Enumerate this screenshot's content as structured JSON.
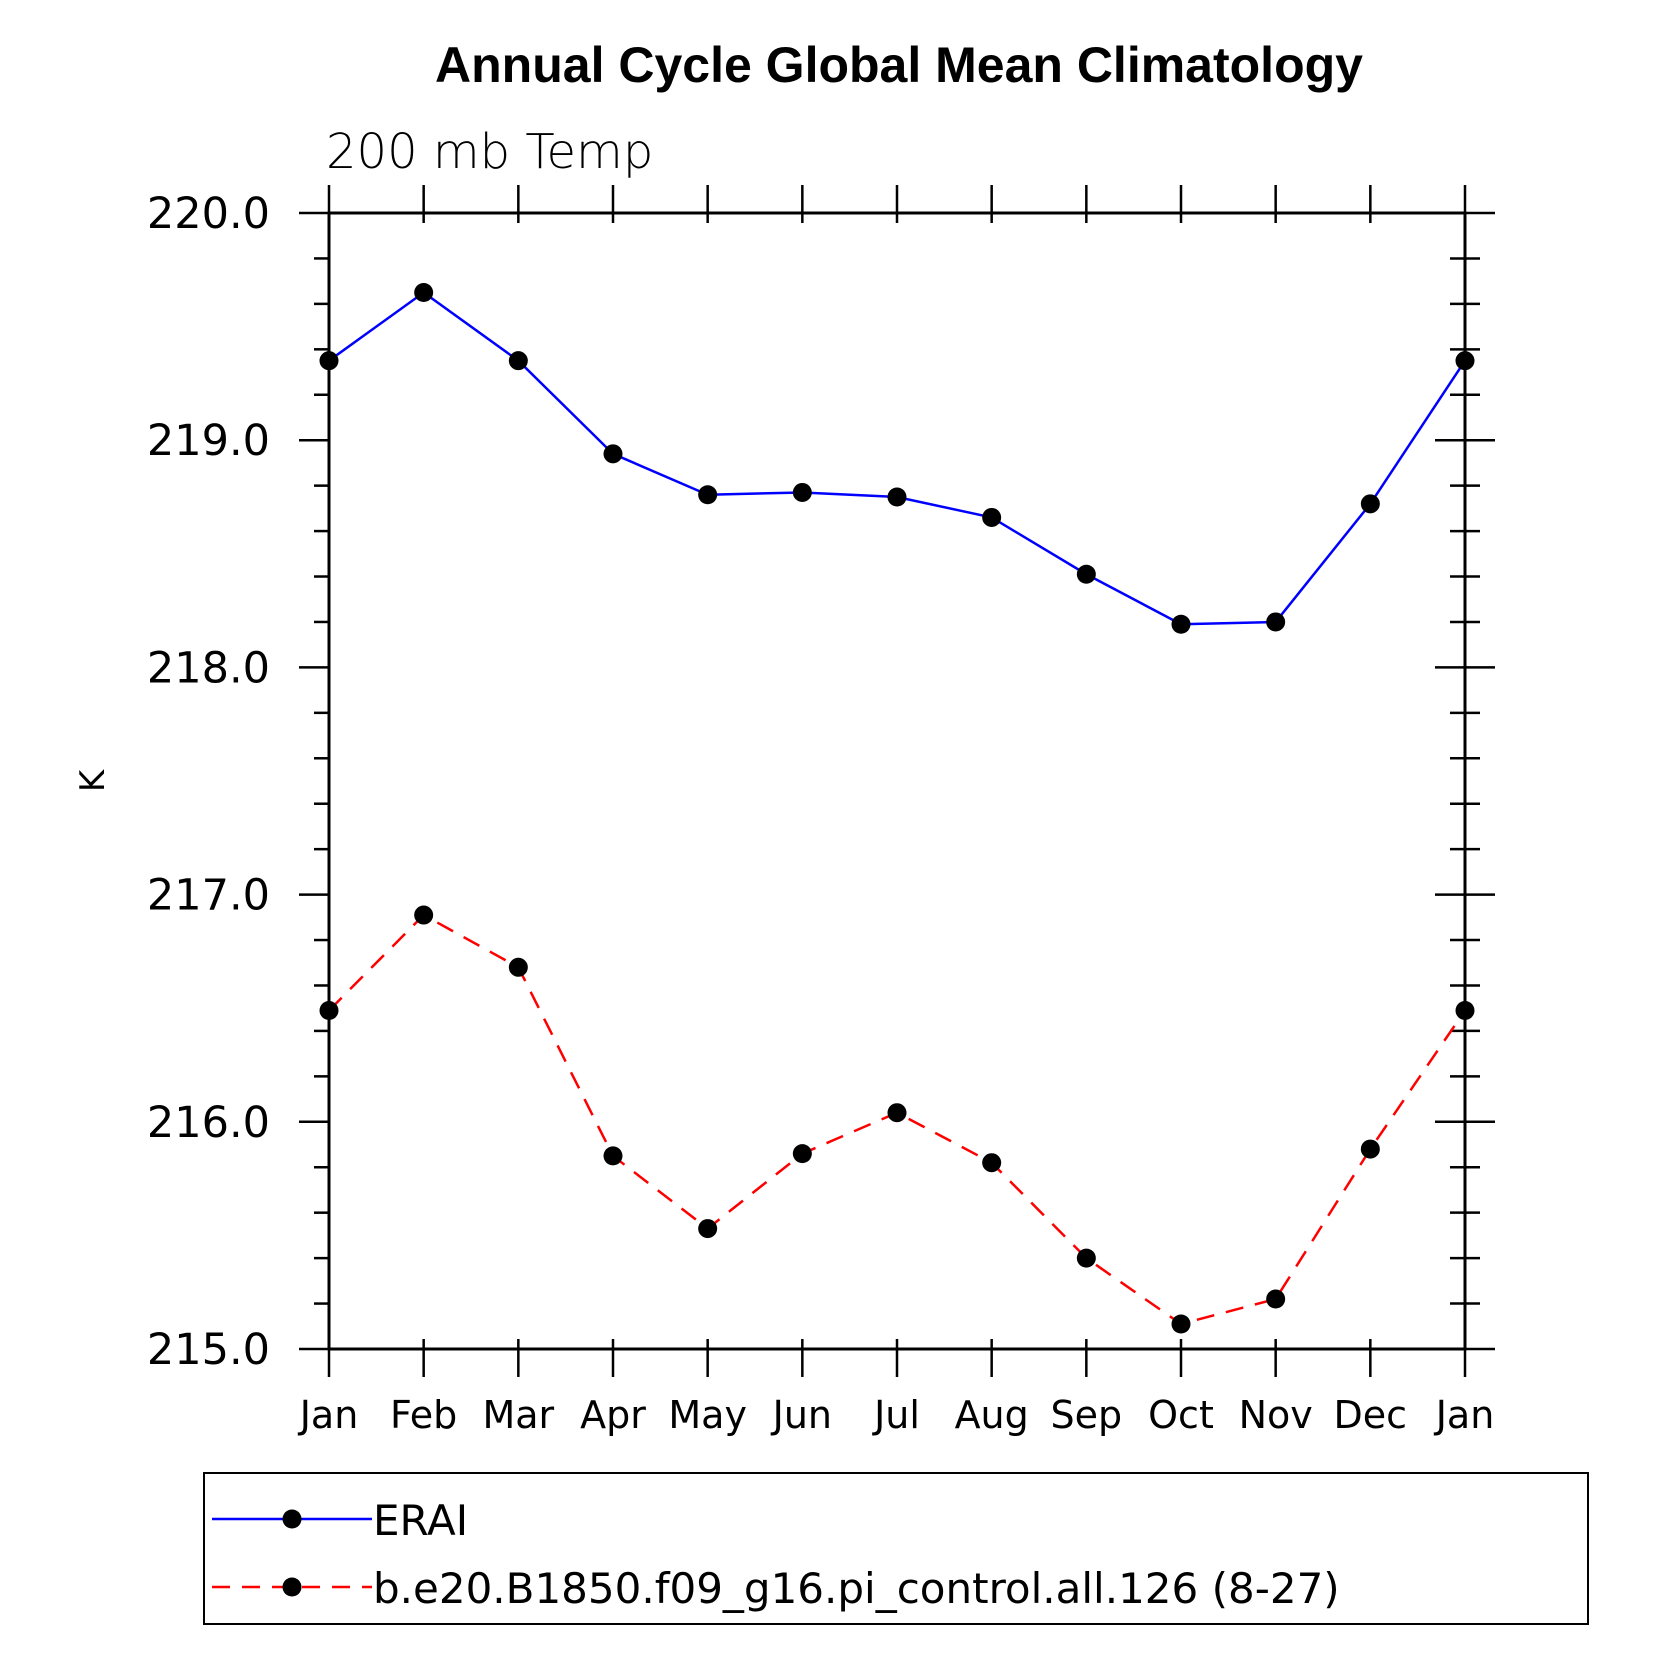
{
  "chart_data": {
    "type": "line",
    "title": "Annual Cycle Global Mean Climatology",
    "subtitle": "200 mb Temp",
    "ylabel": "K",
    "xlabel": "",
    "categories": [
      "Jan",
      "Feb",
      "Mar",
      "Apr",
      "May",
      "Jun",
      "Jul",
      "Aug",
      "Sep",
      "Oct",
      "Nov",
      "Dec",
      "Jan"
    ],
    "ylim": [
      215.0,
      220.0
    ],
    "y_ticks": [
      "215.0",
      "216.0",
      "217.0",
      "218.0",
      "219.0",
      "220.0"
    ],
    "grid": false,
    "legend_position": "bottom",
    "series": [
      {
        "name": "ERAI",
        "color": "#0000ff",
        "line_style": "solid",
        "marker": "filled-circle",
        "values": [
          219.35,
          219.65,
          219.35,
          218.94,
          218.76,
          218.77,
          218.75,
          218.66,
          218.41,
          218.19,
          218.2,
          218.72,
          219.35
        ]
      },
      {
        "name": "b.e20.B1850.f09_g16.pi_control.all.126 (8-27)",
        "color": "#ff0000",
        "line_style": "dashed",
        "marker": "filled-circle",
        "values": [
          216.49,
          216.91,
          216.68,
          215.85,
          215.53,
          215.86,
          216.04,
          215.82,
          215.4,
          215.11,
          215.22,
          215.88,
          216.49
        ]
      }
    ]
  }
}
